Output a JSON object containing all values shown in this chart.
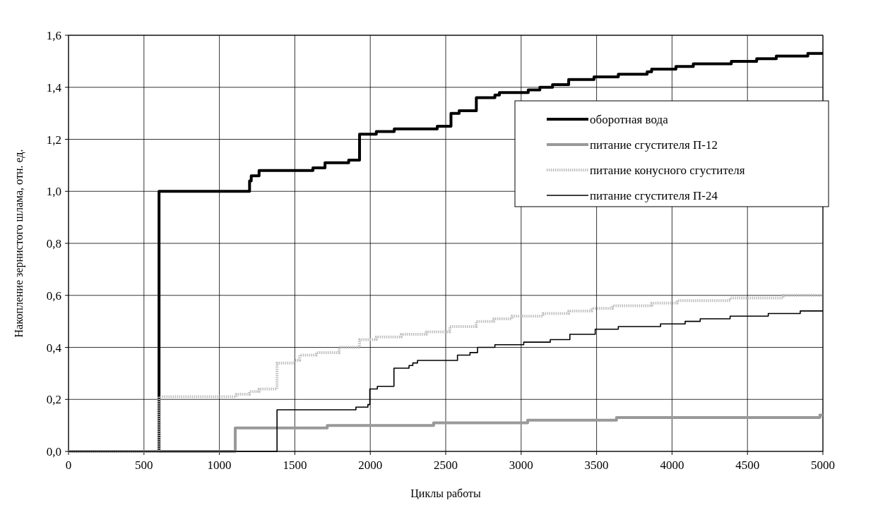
{
  "chart_data": {
    "type": "step",
    "xlabel": "Циклы работы",
    "ylabel": "Накопление зернистого шлама, отн. ед.",
    "xlim": [
      0,
      5000
    ],
    "xticks": [
      0,
      500,
      1000,
      1500,
      2000,
      2500,
      3000,
      3500,
      4000,
      4500,
      5000
    ],
    "ylim": [
      0,
      1.6
    ],
    "yticks": [
      {
        "value": 0,
        "label": "0,0"
      },
      {
        "value": 0.2,
        "label": "0,2"
      },
      {
        "value": 0.4,
        "label": "0,4"
      },
      {
        "value": 0.6,
        "label": "0,6"
      },
      {
        "value": 0.8,
        "label": "0,8"
      },
      {
        "value": 1.0,
        "label": "1,0"
      },
      {
        "value": 1.2,
        "label": "1,2"
      },
      {
        "value": 1.4,
        "label": "1,4"
      },
      {
        "value": 1.6,
        "label": "1,6"
      }
    ],
    "grid": true,
    "legend": "right",
    "marker": "none",
    "series": [
      {
        "name": "оборотная вода",
        "color": "#000000",
        "line_style": "solid",
        "x": [
          0,
          600,
          1200,
          1211,
          1263,
          1620,
          1700,
          1857,
          1929,
          2040,
          2159,
          2444,
          2535,
          2589,
          2703,
          2826,
          2856,
          3047,
          3124,
          3208,
          3315,
          3483,
          3644,
          3835,
          3865,
          4026,
          4141,
          4393,
          4561,
          4691,
          4900,
          5000
        ],
        "values": [
          0,
          1.0,
          1.04,
          1.06,
          1.08,
          1.09,
          1.11,
          1.12,
          1.22,
          1.23,
          1.24,
          1.25,
          1.3,
          1.31,
          1.36,
          1.37,
          1.38,
          1.39,
          1.4,
          1.41,
          1.43,
          1.44,
          1.45,
          1.46,
          1.47,
          1.48,
          1.49,
          1.5,
          1.51,
          1.52,
          1.53,
          1.53
        ]
      },
      {
        "name": "питание сгустителя П-12",
        "color": "#999999",
        "line_style": "solid",
        "x": [
          0,
          1105,
          1715,
          2420,
          3043,
          3632,
          4980,
          5000
        ],
        "values": [
          0,
          0.09,
          0.1,
          0.11,
          0.12,
          0.13,
          0.14,
          0.14
        ]
      },
      {
        "name": "питание конусного сгустителя",
        "color": "#bdbdbd",
        "line_style": "dotted",
        "x": [
          0,
          600,
          1112,
          1200,
          1263,
          1382,
          1500,
          1532,
          1643,
          1794,
          1929,
          2040,
          2206,
          2372,
          2527,
          2703,
          2818,
          2939,
          3145,
          3315,
          3468,
          3606,
          3865,
          4034,
          4385,
          4737,
          5000
        ],
        "values": [
          0,
          0.21,
          0.22,
          0.23,
          0.24,
          0.34,
          0.35,
          0.37,
          0.38,
          0.4,
          0.43,
          0.44,
          0.45,
          0.46,
          0.48,
          0.5,
          0.51,
          0.52,
          0.53,
          0.54,
          0.55,
          0.56,
          0.57,
          0.58,
          0.59,
          0.6,
          0.6
        ]
      },
      {
        "name": "питание сгустителя П-24",
        "color": "#000000",
        "line_style": "solid",
        "x": [
          0,
          1382,
          1905,
          1984,
          1997,
          2047,
          2157,
          2257,
          2282,
          2313,
          2578,
          2661,
          2711,
          2826,
          3017,
          3193,
          3323,
          3491,
          3644,
          3924,
          4087,
          4187,
          4385,
          4638,
          4850,
          5000
        ],
        "values": [
          0,
          0.16,
          0.17,
          0.18,
          0.24,
          0.25,
          0.32,
          0.33,
          0.34,
          0.35,
          0.37,
          0.38,
          0.4,
          0.41,
          0.42,
          0.43,
          0.45,
          0.47,
          0.48,
          0.49,
          0.5,
          0.51,
          0.52,
          0.53,
          0.54,
          0.54
        ]
      }
    ]
  }
}
